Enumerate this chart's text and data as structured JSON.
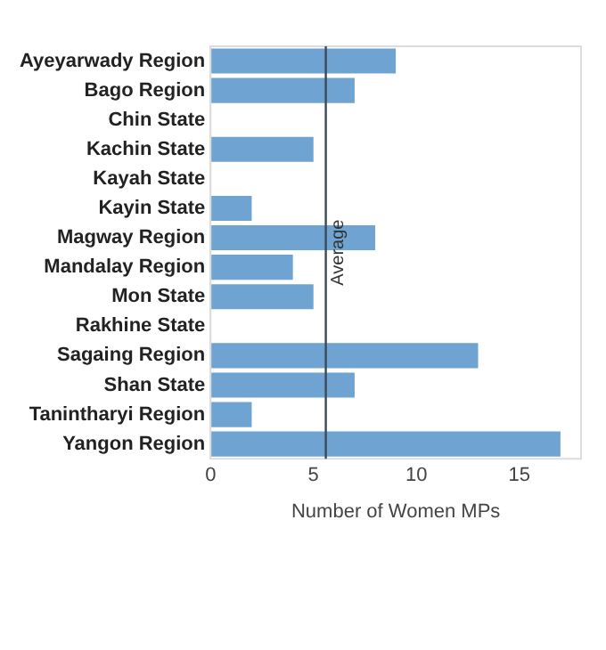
{
  "chart_data": {
    "type": "bar",
    "orientation": "horizontal",
    "xlabel": "Number of Women MPs",
    "categories": [
      "Ayeyarwady Region",
      "Bago Region",
      "Chin State",
      "Kachin State",
      "Kayah State",
      "Kayin State",
      "Magway Region",
      "Mandalay Region",
      "Mon State",
      "Rakhine State",
      "Sagaing Region",
      "Shan State",
      "Tanintharyi Region",
      "Yangon Region"
    ],
    "values": [
      9,
      7,
      0,
      5,
      0,
      2,
      8,
      4,
      5,
      0,
      13,
      7,
      2,
      17
    ],
    "color": "#6fa4d2",
    "xlim": [
      0,
      18
    ],
    "xticks": [
      0,
      5,
      10,
      15
    ],
    "grid": false,
    "legend": false,
    "ref_lines": [
      {
        "axis": "x",
        "value": 5.6,
        "label": "Average",
        "color": "#3b4a55"
      }
    ]
  }
}
